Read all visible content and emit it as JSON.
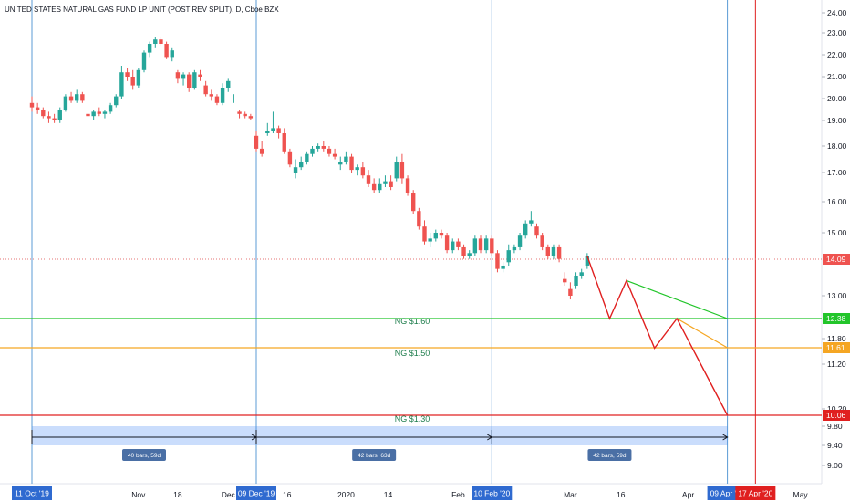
{
  "chart_data": {
    "type": "candlestick",
    "title": "UNITED STATES NATURAL GAS FUND LP UNIT (POST REV SPLIT), D, Cboe BZX",
    "y_axis": {
      "range": [
        8.7,
        24.4
      ],
      "ticks": [
        "24.00",
        "23.00",
        "22.00",
        "21.00",
        "20.00",
        "19.00",
        "18.00",
        "17.00",
        "16.00",
        "15.00",
        "13.00",
        "11.80",
        "11.20",
        "10.20",
        "9.80",
        "9.40",
        "9.00"
      ]
    },
    "x_axis": {
      "ticks": [
        "Nov",
        "18",
        "Dec",
        "16",
        "2020",
        "14",
        "Feb",
        "Mar",
        "16",
        "Apr",
        "May"
      ]
    },
    "date_markers": [
      {
        "label": "11 Oct '19",
        "bar": 0
      },
      {
        "label": "09 Dec '19",
        "bar": 40
      },
      {
        "label": "10 Feb '20",
        "bar": 82
      },
      {
        "label": "09 Apr '20",
        "bar": 124
      }
    ],
    "expiry_marker": {
      "label": "17 Apr '20",
      "bar": 129
    },
    "current_price": {
      "value": 14.09,
      "label": "14.09"
    },
    "levels": [
      {
        "name": "NG $1.60",
        "value": 12.38,
        "label": "12.38",
        "color": "#22c52a"
      },
      {
        "name": "NG $1.50",
        "value": 11.61,
        "label": "11.61",
        "color": "#f5a623"
      },
      {
        "name": "NG $1.30",
        "value": 10.06,
        "label": "10.06",
        "color": "#e02020"
      }
    ],
    "segments": [
      {
        "label": "40 bars, 59d",
        "from_bar": 0,
        "to_bar": 40
      },
      {
        "label": "42 bars, 63d",
        "from_bar": 40,
        "to_bar": 82
      },
      {
        "label": "42 bars, 59d",
        "from_bar": 82,
        "to_bar": 124
      }
    ],
    "projection": {
      "red_path": [
        [
          99,
          14.2
        ],
        [
          103,
          12.38
        ],
        [
          106,
          13.45
        ],
        [
          111,
          11.6
        ],
        [
          115,
          12.38
        ],
        [
          124,
          10.06
        ]
      ],
      "green_line": [
        [
          106,
          13.45
        ],
        [
          124,
          12.38
        ]
      ],
      "orange_line": [
        [
          115,
          12.38
        ],
        [
          124,
          11.61
        ]
      ]
    },
    "candles": [
      [
        19.8,
        20.1,
        19.4,
        19.6
      ],
      [
        19.6,
        19.8,
        19.3,
        19.5
      ],
      [
        19.5,
        19.6,
        19.1,
        19.2
      ],
      [
        19.2,
        19.4,
        18.9,
        19.1
      ],
      [
        19.1,
        19.3,
        18.9,
        19.0
      ],
      [
        19.0,
        19.6,
        18.9,
        19.5
      ],
      [
        19.5,
        20.2,
        19.4,
        20.1
      ],
      [
        20.1,
        20.3,
        19.8,
        19.9
      ],
      [
        19.9,
        20.4,
        19.8,
        20.2
      ],
      [
        20.2,
        20.3,
        19.8,
        19.9
      ],
      [
        19.3,
        19.6,
        19.0,
        19.2
      ],
      [
        19.2,
        19.5,
        19.0,
        19.4
      ],
      [
        19.4,
        19.6,
        19.2,
        19.3
      ],
      [
        19.3,
        19.5,
        19.1,
        19.4
      ],
      [
        19.4,
        19.8,
        19.3,
        19.7
      ],
      [
        19.7,
        20.2,
        19.6,
        20.1
      ],
      [
        20.1,
        21.5,
        20.0,
        21.2
      ],
      [
        21.2,
        21.4,
        20.8,
        21.0
      ],
      [
        21.0,
        21.3,
        20.4,
        20.6
      ],
      [
        20.6,
        21.4,
        20.5,
        21.3
      ],
      [
        21.3,
        22.2,
        21.2,
        22.1
      ],
      [
        22.1,
        22.6,
        21.9,
        22.5
      ],
      [
        22.5,
        22.8,
        22.3,
        22.7
      ],
      [
        22.7,
        22.8,
        22.4,
        22.5
      ],
      [
        22.5,
        22.6,
        21.8,
        21.9
      ],
      [
        21.9,
        22.3,
        21.7,
        22.2
      ],
      [
        21.2,
        21.3,
        20.7,
        20.9
      ],
      [
        20.9,
        21.2,
        20.6,
        21.1
      ],
      [
        21.1,
        21.2,
        20.3,
        20.5
      ],
      [
        20.5,
        21.3,
        20.4,
        21.2
      ],
      [
        21.1,
        21.3,
        20.8,
        21.0
      ],
      [
        20.6,
        20.8,
        20.1,
        20.2
      ],
      [
        20.2,
        20.4,
        19.9,
        20.1
      ],
      [
        20.1,
        20.2,
        19.7,
        19.8
      ],
      [
        19.8,
        20.7,
        19.7,
        20.5
      ],
      [
        20.5,
        20.9,
        20.3,
        20.8
      ],
      [
        20.0,
        20.2,
        19.8,
        20.0
      ],
      [
        19.4,
        19.5,
        19.1,
        19.3
      ],
      [
        19.3,
        19.4,
        19.1,
        19.2
      ],
      [
        19.2,
        19.3,
        19.0,
        19.1
      ],
      [
        18.4,
        18.6,
        17.8,
        17.9
      ],
      [
        17.9,
        18.2,
        17.6,
        17.7
      ],
      [
        18.5,
        18.9,
        18.4,
        18.6
      ],
      [
        18.6,
        19.4,
        18.5,
        18.7
      ],
      [
        18.7,
        18.8,
        18.3,
        18.5
      ],
      [
        18.5,
        18.7,
        17.7,
        17.8
      ],
      [
        17.8,
        17.9,
        17.2,
        17.3
      ],
      [
        17.0,
        17.5,
        16.8,
        17.2
      ],
      [
        17.2,
        17.6,
        17.1,
        17.4
      ],
      [
        17.4,
        17.8,
        17.3,
        17.7
      ],
      [
        17.7,
        18.0,
        17.6,
        17.9
      ],
      [
        17.9,
        18.1,
        17.8,
        18.0
      ],
      [
        18.0,
        18.2,
        17.8,
        17.9
      ],
      [
        17.9,
        18.0,
        17.6,
        17.7
      ],
      [
        17.7,
        17.9,
        17.5,
        17.6
      ],
      [
        17.3,
        17.6,
        17.1,
        17.4
      ],
      [
        17.4,
        17.8,
        17.3,
        17.6
      ],
      [
        17.6,
        17.7,
        17.0,
        17.1
      ],
      [
        17.1,
        17.3,
        16.9,
        17.2
      ],
      [
        17.2,
        17.4,
        16.8,
        16.9
      ],
      [
        16.9,
        17.1,
        16.5,
        16.6
      ],
      [
        16.6,
        16.8,
        16.3,
        16.4
      ],
      [
        16.4,
        16.8,
        16.3,
        16.6
      ],
      [
        16.6,
        16.9,
        16.5,
        16.7
      ],
      [
        16.7,
        16.9,
        16.4,
        16.5
      ],
      [
        16.8,
        17.6,
        16.7,
        17.4
      ],
      [
        17.4,
        17.7,
        16.6,
        16.8
      ],
      [
        16.8,
        16.9,
        16.2,
        16.3
      ],
      [
        16.3,
        16.4,
        15.6,
        15.7
      ],
      [
        15.7,
        15.8,
        15.1,
        15.2
      ],
      [
        15.2,
        15.4,
        14.6,
        14.7
      ],
      [
        14.7,
        15.0,
        14.5,
        14.8
      ],
      [
        14.8,
        15.1,
        14.7,
        15.0
      ],
      [
        15.0,
        15.1,
        14.8,
        14.9
      ],
      [
        14.9,
        15.0,
        14.3,
        14.4
      ],
      [
        14.4,
        14.8,
        14.3,
        14.7
      ],
      [
        14.7,
        14.8,
        14.4,
        14.5
      ],
      [
        14.5,
        14.6,
        14.1,
        14.2
      ],
      [
        14.2,
        14.4,
        14.1,
        14.3
      ],
      [
        14.3,
        14.9,
        14.2,
        14.8
      ],
      [
        14.8,
        14.9,
        14.3,
        14.4
      ],
      [
        14.4,
        14.9,
        14.3,
        14.8
      ],
      [
        14.8,
        14.9,
        14.2,
        14.3
      ],
      [
        14.3,
        14.4,
        13.7,
        13.8
      ],
      [
        13.8,
        14.0,
        13.7,
        13.9
      ],
      [
        14.0,
        14.6,
        13.9,
        14.4
      ],
      [
        14.4,
        14.6,
        14.3,
        14.5
      ],
      [
        14.5,
        15.0,
        14.4,
        14.9
      ],
      [
        14.9,
        15.4,
        14.8,
        15.3
      ],
      [
        15.3,
        15.7,
        15.2,
        15.4
      ],
      [
        15.2,
        15.3,
        14.8,
        14.9
      ],
      [
        14.9,
        15.0,
        14.4,
        14.5
      ],
      [
        14.5,
        14.6,
        14.1,
        14.2
      ],
      [
        14.2,
        14.6,
        14.1,
        14.5
      ],
      [
        14.5,
        14.6,
        14.0,
        14.1
      ],
      [
        13.5,
        13.7,
        13.3,
        13.4
      ],
      [
        13.2,
        13.4,
        12.9,
        13.0
      ],
      [
        13.3,
        13.7,
        13.2,
        13.6
      ],
      [
        13.6,
        13.8,
        13.5,
        13.7
      ],
      [
        13.9,
        14.3,
        13.8,
        14.2
      ]
    ]
  }
}
